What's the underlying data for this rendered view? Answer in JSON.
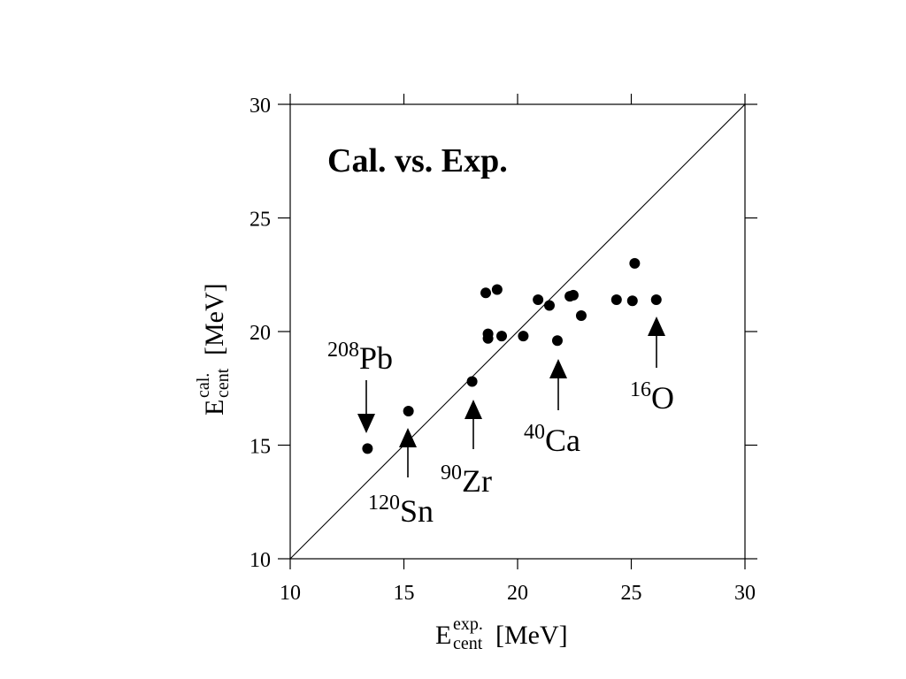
{
  "chart_data": {
    "type": "scatter",
    "title": "Cal. vs. Exp.",
    "xlabel": {
      "main": "E",
      "sup": "exp.",
      "sub": "cent",
      "unit": " [MeV]"
    },
    "ylabel": {
      "main": "E",
      "sup": "cal.",
      "sub": "cent",
      "unit": " [MeV]"
    },
    "xlim": [
      10,
      30
    ],
    "ylim": [
      10,
      30
    ],
    "x_ticks": [
      "10",
      "15",
      "20",
      "25",
      "30"
    ],
    "y_ticks": [
      "10",
      "15",
      "20",
      "25",
      "30"
    ],
    "reference_line": {
      "from": [
        10,
        10
      ],
      "to": [
        30,
        30
      ]
    },
    "grid": false,
    "points": [
      {
        "x": 13.4,
        "y": 14.85
      },
      {
        "x": 15.2,
        "y": 16.5
      },
      {
        "x": 18.0,
        "y": 17.8
      },
      {
        "x": 18.6,
        "y": 21.7
      },
      {
        "x": 18.7,
        "y": 19.9
      },
      {
        "x": 18.7,
        "y": 19.7
      },
      {
        "x": 19.1,
        "y": 21.85
      },
      {
        "x": 19.3,
        "y": 19.8
      },
      {
        "x": 20.25,
        "y": 19.8
      },
      {
        "x": 20.9,
        "y": 21.4
      },
      {
        "x": 21.4,
        "y": 21.15
      },
      {
        "x": 21.75,
        "y": 19.6
      },
      {
        "x": 22.3,
        "y": 21.55
      },
      {
        "x": 22.45,
        "y": 21.6
      },
      {
        "x": 22.8,
        "y": 20.7
      },
      {
        "x": 24.35,
        "y": 21.4
      },
      {
        "x": 25.05,
        "y": 21.35
      },
      {
        "x": 25.15,
        "y": 23.0
      },
      {
        "x": 26.1,
        "y": 21.4
      }
    ],
    "annotations": [
      {
        "mass": "208",
        "element": "Pb",
        "arrow_direction": "down"
      },
      {
        "mass": "120",
        "element": "Sn",
        "arrow_direction": "up"
      },
      {
        "mass": "90",
        "element": "Zr",
        "arrow_direction": "up"
      },
      {
        "mass": "40",
        "element": "Ca",
        "arrow_direction": "up"
      },
      {
        "mass": "16",
        "element": "O",
        "arrow_direction": "up"
      }
    ]
  }
}
